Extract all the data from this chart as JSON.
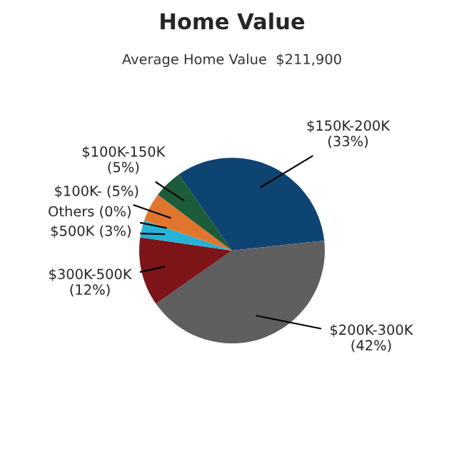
{
  "chart_data": {
    "type": "pie",
    "title": "Home Value",
    "subtitle": "Average Home Value  $211,900",
    "categories": [
      "$150K-200K",
      "$200K-300K",
      "$300K-500K",
      "$500K",
      "Others",
      "$100K-",
      "$100K-150K"
    ],
    "values": [
      33,
      42,
      12,
      3,
      0,
      5,
      5
    ],
    "value_labels": [
      "(33%)",
      "(42%)",
      "(12%)",
      "(3%)",
      "(0%)",
      "(5%)",
      "(5%)"
    ],
    "colors": [
      "#0e4471",
      "#5f5f5f",
      "#7d1518",
      "#25b3d8",
      "#8a5aa8",
      "#e0762e",
      "#1c5c3a"
    ]
  }
}
